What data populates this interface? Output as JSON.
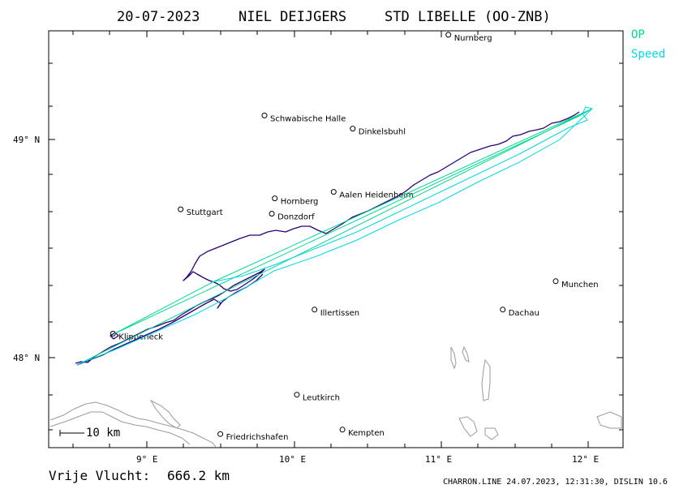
{
  "header": {
    "date": "20-07-2023",
    "pilot": "NIEL DEIJGERS",
    "aircraft": "STD LIBELLE (OO-ZNB)"
  },
  "legend": [
    {
      "label": "OP",
      "color": "#00d890"
    },
    {
      "label": "Speed",
      "color": "#00d8e8"
    }
  ],
  "axes": {
    "lat_labels": [
      "49° N",
      "48° N"
    ],
    "lon_labels": [
      "9° E",
      "10° E",
      "11° E",
      "12° E"
    ]
  },
  "scale_bar": {
    "label": "10 km"
  },
  "cities": [
    {
      "name": "Nurnberg",
      "lon": 11.05,
      "lat": 49.48
    },
    {
      "name": "Schwabische Halle",
      "lon": 9.8,
      "lat": 49.11
    },
    {
      "name": "Dinkelsbuhl",
      "lon": 10.4,
      "lat": 49.05
    },
    {
      "name": "Hornberg",
      "lon": 9.87,
      "lat": 48.73
    },
    {
      "name": "Aalen Heidenheim",
      "lon": 10.27,
      "lat": 48.76
    },
    {
      "name": "Stuttgart",
      "lon": 9.23,
      "lat": 48.68
    },
    {
      "name": "Donzdorf",
      "lon": 9.85,
      "lat": 48.66
    },
    {
      "name": "Munchen",
      "lon": 11.78,
      "lat": 48.35
    },
    {
      "name": "Illertissen",
      "lon": 10.14,
      "lat": 48.22
    },
    {
      "name": "Dachau",
      "lon": 11.42,
      "lat": 48.22
    },
    {
      "name": "Klippeneck",
      "lon": 8.77,
      "lat": 48.11
    },
    {
      "name": "Leutkirch",
      "lon": 10.02,
      "lat": 47.83
    },
    {
      "name": "Friedrichshafen",
      "lon": 9.5,
      "lat": 47.65
    },
    {
      "name": "Kempten",
      "lon": 10.33,
      "lat": 47.67
    }
  ],
  "track_color": "#2a0077",
  "op_color": "#00d890",
  "speed_color": "#00d8e8",
  "footer": {
    "distance_label": "Vrije Vlucht:",
    "distance_value": "666.2 km",
    "credit": "CHARRON.LINE 24.07.2023, 12:31:30, DISLIN 10.6"
  }
}
